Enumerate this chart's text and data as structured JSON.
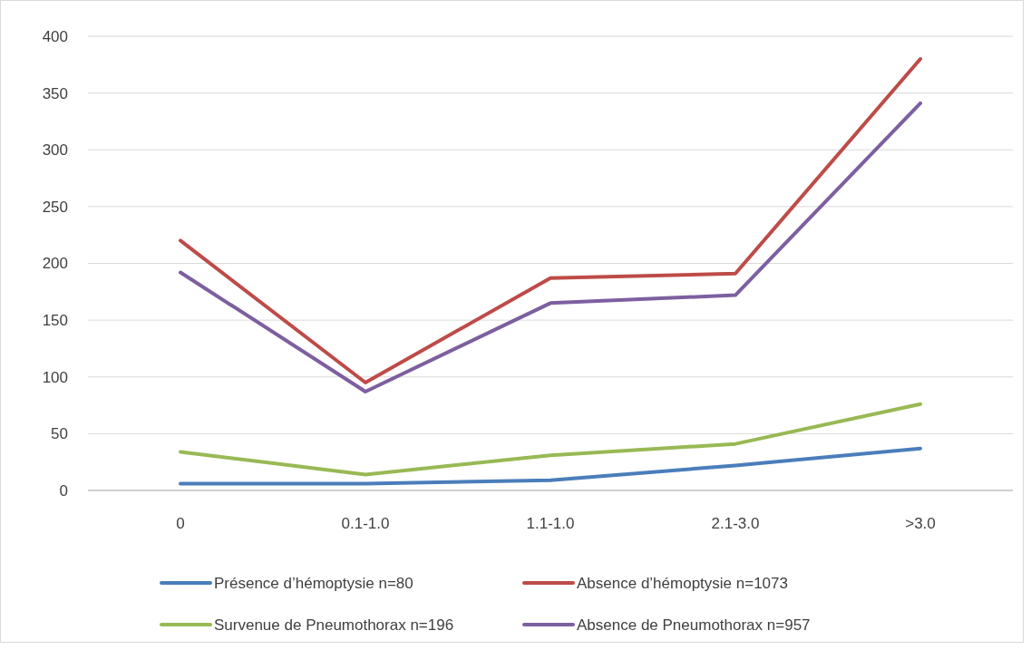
{
  "chart_data": {
    "type": "line",
    "categories": [
      "0",
      "0.1-1.0",
      "1.1-1.0",
      "2.1-3.0",
      ">3.0"
    ],
    "series": [
      {
        "name": "Présence d’hémoptysie n=80",
        "color": "#4a7ebb",
        "values": [
          6,
          6,
          9,
          22,
          37
        ]
      },
      {
        "name": "Absence d’hémoptysie n=1073",
        "color": "#be4b48",
        "values": [
          220,
          95,
          187,
          191,
          380
        ]
      },
      {
        "name": "Survenue de Pneumothorax n=196",
        "color": "#98b954",
        "values": [
          34,
          14,
          31,
          41,
          76
        ]
      },
      {
        "name": "Absence de Pneumothorax n=957",
        "color": "#7d5fa0",
        "values": [
          192,
          87,
          165,
          172,
          341
        ]
      }
    ],
    "ylim": [
      0,
      400
    ],
    "yticks": [
      0,
      50,
      100,
      150,
      200,
      250,
      300,
      350,
      400
    ],
    "grid": "y",
    "legend": "bottom",
    "marker": "none",
    "line_style": "solid"
  }
}
